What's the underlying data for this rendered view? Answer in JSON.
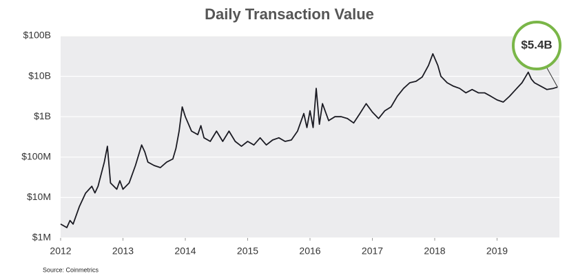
{
  "chart_data": {
    "type": "line",
    "title": "Daily Transaction Value",
    "source": "Source: Coinmetrics",
    "annotation": "$5.4B",
    "yscale": "log",
    "grid": true,
    "color": "#1a1a22",
    "annotation_color": "#7ab648",
    "xlim": [
      2012,
      2020
    ],
    "xticks": [
      2012,
      2013,
      2014,
      2015,
      2016,
      2017,
      2018,
      2019
    ],
    "ylim": [
      1000000,
      100000000000
    ],
    "yticks": [
      {
        "value": 1000000,
        "label": "$1M"
      },
      {
        "value": 10000000,
        "label": "$10M"
      },
      {
        "value": 100000000,
        "label": "$100M"
      },
      {
        "value": 1000000000,
        "label": "$1B"
      },
      {
        "value": 10000000000,
        "label": "$10B"
      },
      {
        "value": 100000000000,
        "label": "$100B"
      }
    ],
    "x": [
      2012.0,
      2012.1,
      2012.15,
      2012.2,
      2012.3,
      2012.4,
      2012.5,
      2012.55,
      2012.6,
      2012.7,
      2012.75,
      2012.8,
      2012.9,
      2012.95,
      2013.0,
      2013.1,
      2013.2,
      2013.3,
      2013.35,
      2013.4,
      2013.5,
      2013.6,
      2013.7,
      2013.8,
      2013.85,
      2013.9,
      2013.95,
      2014.0,
      2014.1,
      2014.2,
      2014.25,
      2014.3,
      2014.4,
      2014.5,
      2014.6,
      2014.7,
      2014.8,
      2014.9,
      2015.0,
      2015.1,
      2015.2,
      2015.3,
      2015.4,
      2015.5,
      2015.6,
      2015.7,
      2015.8,
      2015.9,
      2015.95,
      2016.0,
      2016.05,
      2016.1,
      2016.15,
      2016.2,
      2016.3,
      2016.4,
      2016.5,
      2016.6,
      2016.7,
      2016.8,
      2016.9,
      2017.0,
      2017.1,
      2017.2,
      2017.3,
      2017.4,
      2017.5,
      2017.6,
      2017.7,
      2017.8,
      2017.9,
      2017.97,
      2018.05,
      2018.1,
      2018.2,
      2018.3,
      2018.4,
      2018.5,
      2018.6,
      2018.7,
      2018.8,
      2018.9,
      2019.0,
      2019.1,
      2019.2,
      2019.3,
      2019.4,
      2019.5,
      2019.55,
      2019.6,
      2019.7,
      2019.8,
      2019.9,
      2019.97
    ],
    "values": [
      2200000,
      1800000,
      2700000,
      2200000,
      5900000,
      12800000,
      19000000,
      13000000,
      19000000,
      75000000,
      185000000,
      23000000,
      16000000,
      26000000,
      16000000,
      23000000,
      62000000,
      200000000,
      135000000,
      75000000,
      62000000,
      55000000,
      75000000,
      90000000,
      165000000,
      440000000,
      1750000000,
      1000000000,
      440000000,
      360000000,
      600000000,
      300000000,
      245000000,
      440000000,
      245000000,
      440000000,
      245000000,
      185000000,
      245000000,
      200000000,
      300000000,
      200000000,
      265000000,
      300000000,
      245000000,
      265000000,
      440000000,
      1200000000,
      540000000,
      1400000000,
      540000000,
      5000000000,
      650000000,
      2100000000,
      800000000,
      1000000000,
      1000000000,
      900000000,
      700000000,
      1200000000,
      2100000000,
      1300000000,
      900000000,
      1400000000,
      1750000000,
      3200000000,
      5000000000,
      6900000000,
      7500000000,
      9600000000,
      18600000000,
      36000000000,
      18600000000,
      10000000000,
      6900000000,
      5700000000,
      5000000000,
      3900000000,
      4700000000,
      3900000000,
      3900000000,
      3200000000,
      2600000000,
      2300000000,
      3200000000,
      4700000000,
      6900000000,
      12600000000,
      8500000000,
      6900000000,
      5700000000,
      4700000000,
      5000000000,
      5400000000
    ]
  }
}
